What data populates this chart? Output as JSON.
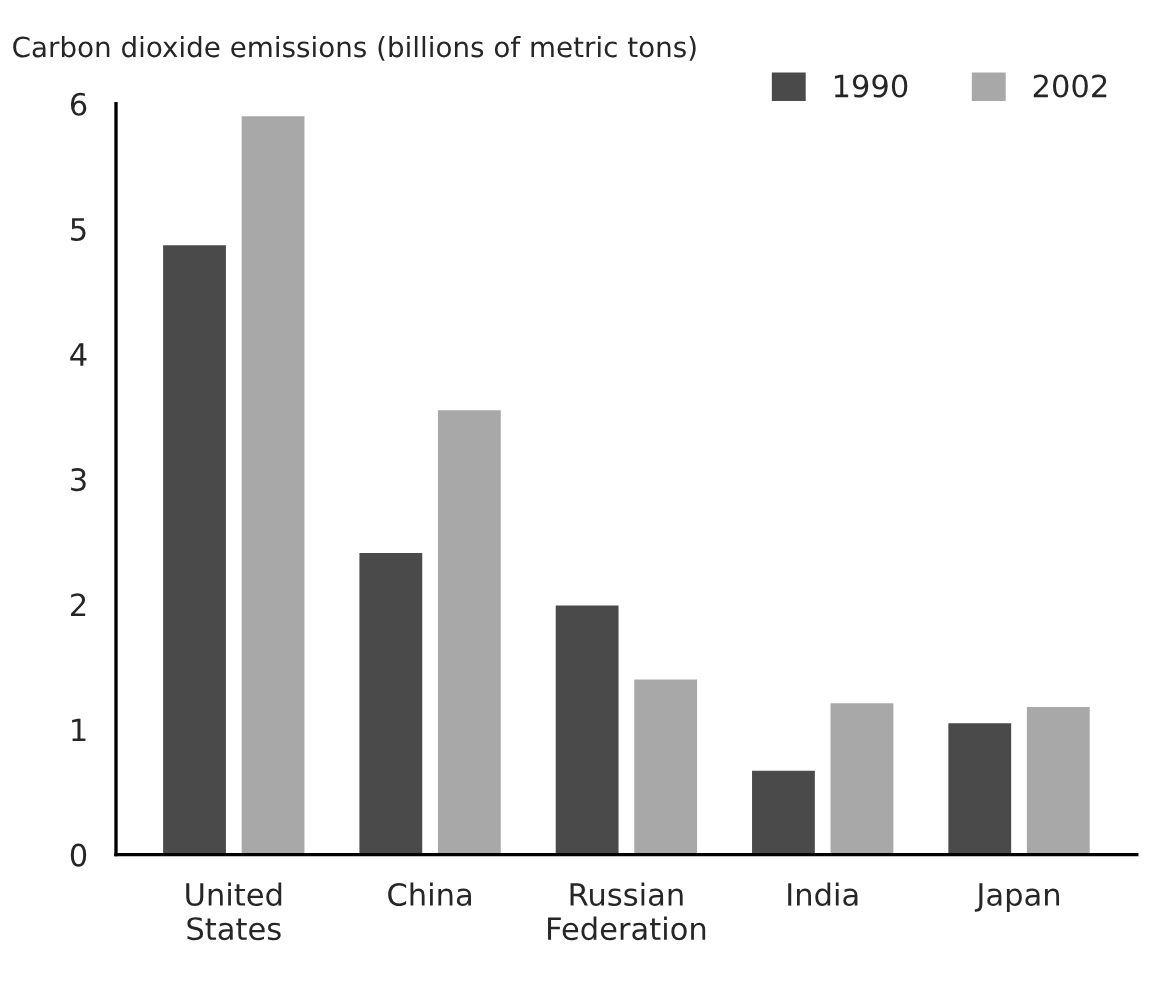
{
  "chart_data": {
    "type": "bar",
    "title": "Carbon dioxide emissions (billions of metric tons)",
    "categories": [
      "United\nStates",
      "China",
      "Russian\nFederation",
      "India",
      "Japan"
    ],
    "series": [
      {
        "name": "1990",
        "color": "#4a4a4a",
        "values": [
          4.87,
          2.41,
          1.99,
          0.67,
          1.05
        ]
      },
      {
        "name": "2002",
        "color": "#a8a8a8",
        "values": [
          5.9,
          3.55,
          1.4,
          1.21,
          1.18
        ]
      }
    ],
    "ylim": [
      0,
      6
    ],
    "yticks": [
      0,
      1,
      2,
      3,
      4,
      5,
      6
    ],
    "grid": false,
    "legend": "top right"
  }
}
